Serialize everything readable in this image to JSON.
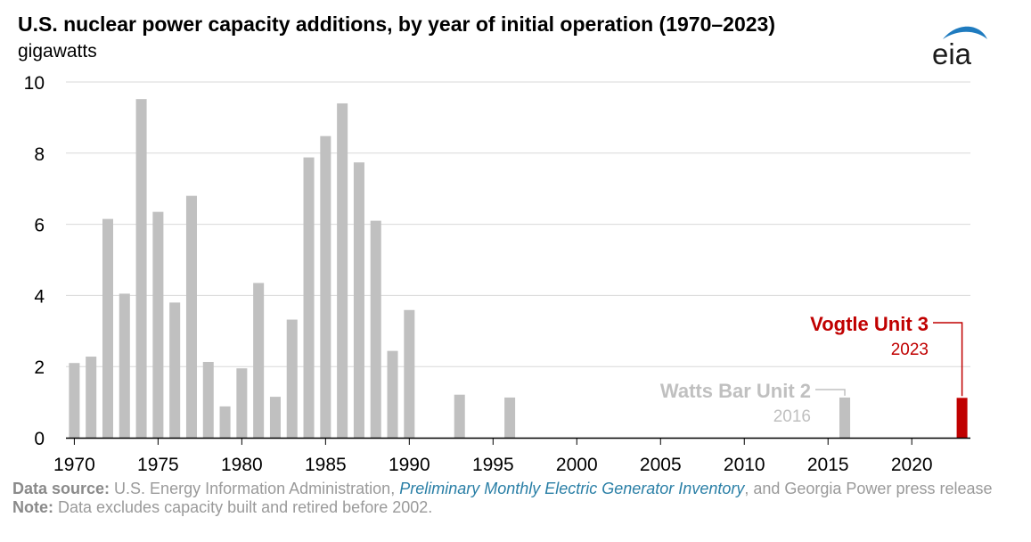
{
  "title": "U.S. nuclear power capacity additions, by year of initial operation (1970–2023)",
  "unit_label": "gigawatts",
  "logo": {
    "text": "eia",
    "accent": "#1f7bbf"
  },
  "colors": {
    "bar": "#c0c0c0",
    "highlight": "#c00000",
    "grid": "#d9d9d9",
    "axis": "#000000"
  },
  "chart_data": {
    "type": "bar",
    "x": [
      1970,
      1971,
      1972,
      1973,
      1974,
      1975,
      1976,
      1977,
      1978,
      1979,
      1980,
      1981,
      1982,
      1983,
      1984,
      1985,
      1986,
      1987,
      1988,
      1989,
      1990,
      1993,
      1996,
      2016,
      2023
    ],
    "values": [
      2.1,
      2.28,
      6.15,
      4.05,
      9.52,
      6.35,
      3.8,
      6.8,
      2.13,
      0.88,
      1.95,
      4.35,
      1.15,
      3.32,
      7.88,
      8.48,
      9.4,
      7.74,
      6.1,
      2.44,
      3.59,
      1.21,
      1.13,
      1.13,
      1.12
    ],
    "highlight_x": 2023,
    "ylim": [
      0,
      10
    ],
    "y_ticks": [
      "0",
      "2",
      "4",
      "6",
      "8",
      "10"
    ],
    "x_ticks": [
      "1970",
      "1975",
      "1980",
      "1985",
      "1990",
      "1995",
      "2000",
      "2005",
      "2010",
      "2015",
      "2020"
    ],
    "grid": true,
    "annotations": [
      {
        "label": "Watts Bar Unit 2",
        "sub": "2016",
        "x": 2016,
        "color": "#c0c0c0"
      },
      {
        "label": "Vogtle Unit 3",
        "sub": "2023",
        "x": 2023,
        "color": "#c00000"
      }
    ]
  },
  "footer": {
    "source_label": "Data source:",
    "source_text_1": " U.S. Energy Information Administration, ",
    "source_link": "Preliminary Monthly Electric Generator Inventory",
    "source_text_2": ", and Georgia Power press release",
    "note_label": "Note:",
    "note_text": " Data excludes capacity built and retired before 2002."
  }
}
